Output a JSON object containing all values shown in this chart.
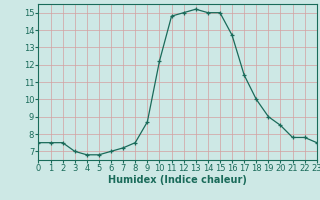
{
  "x": [
    0,
    1,
    2,
    3,
    4,
    5,
    6,
    7,
    8,
    9,
    10,
    11,
    12,
    13,
    14,
    15,
    16,
    17,
    18,
    19,
    20,
    21,
    22,
    23
  ],
  "y": [
    7.5,
    7.5,
    7.5,
    7.0,
    6.8,
    6.8,
    7.0,
    7.2,
    7.5,
    8.7,
    12.2,
    14.8,
    15.0,
    15.2,
    15.0,
    15.0,
    13.7,
    11.4,
    10.0,
    9.0,
    8.5,
    7.8,
    7.8,
    7.5
  ],
  "line_color": "#1a6b5a",
  "marker": "+",
  "marker_size": 3,
  "bg_color": "#cde8e5",
  "grid_color": "#b8d8d5",
  "tick_color": "#1a6b5a",
  "xlabel": "Humidex (Indice chaleur)",
  "xlim": [
    0,
    23
  ],
  "ylim": [
    6.5,
    15.5
  ],
  "yticks": [
    7,
    8,
    9,
    10,
    11,
    12,
    13,
    14,
    15
  ],
  "xticks": [
    0,
    1,
    2,
    3,
    4,
    5,
    6,
    7,
    8,
    9,
    10,
    11,
    12,
    13,
    14,
    15,
    16,
    17,
    18,
    19,
    20,
    21,
    22,
    23
  ],
  "font_color": "#1a6b5a",
  "font_size": 6,
  "xlabel_fontsize": 7
}
